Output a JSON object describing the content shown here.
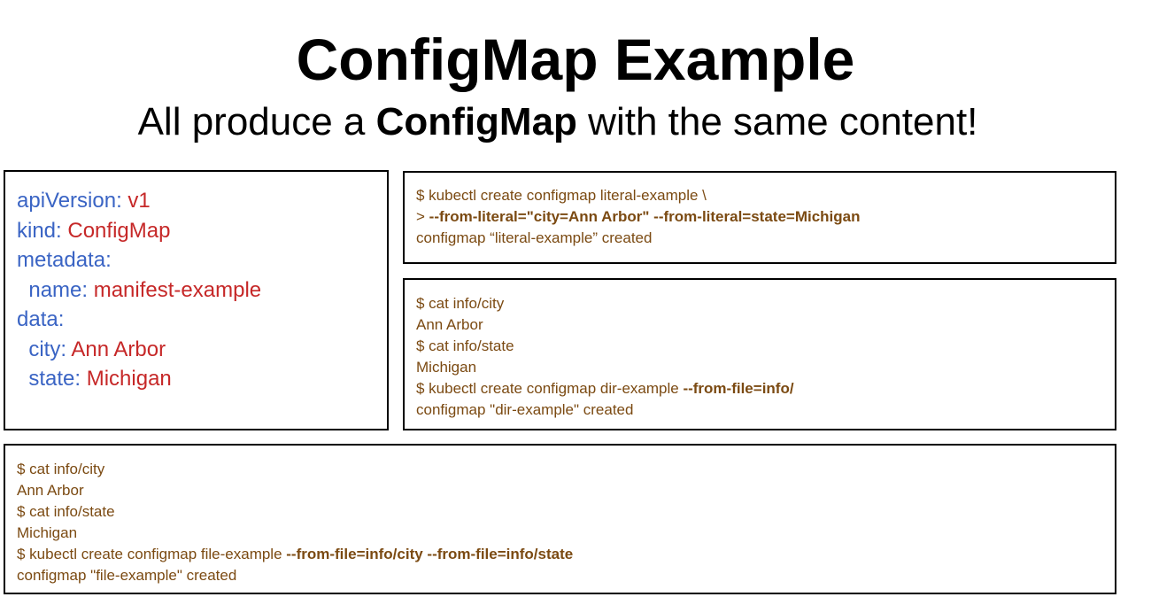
{
  "title": "ConfigMap Example",
  "subtitle": {
    "prefix": "All produce a ",
    "emphasis": "ConfigMap",
    "suffix": " with the same content!"
  },
  "manifest": {
    "apiVersion_key": "apiVersion:",
    "apiVersion_val": "v1",
    "kind_key": "kind:",
    "kind_val": "ConfigMap",
    "metadata_key": "metadata:",
    "name_key": "name:",
    "name_val": "manifest-example",
    "data_key": "data:",
    "city_key": "city:",
    "city_val": "Ann Arbor",
    "state_key": "state:",
    "state_val": "Michigan"
  },
  "literal": {
    "line1": "$ kubectl create configmap literal-example \\",
    "line2_prompt": "> ",
    "line2_flags": "--from-literal=\"city=Ann Arbor\" --from-literal=state=Michigan",
    "line3": "configmap “literal-example” created"
  },
  "dir": {
    "line1": "$ cat info/city",
    "line2": "Ann Arbor",
    "line3": "$ cat info/state",
    "line4": "Michigan",
    "line5_cmd": "$ kubectl create configmap dir-example ",
    "line5_flag": "--from-file=info/",
    "line6": "configmap \"dir-example\" created"
  },
  "file": {
    "line1": "$ cat info/city",
    "line2": "Ann Arbor",
    "line3": "$ cat info/state",
    "line4": "Michigan",
    "line5_cmd": "$ kubectl create configmap file-example ",
    "line5_flag": "--from-file=info/city --from-file=info/state",
    "line6": "configmap \"file-example\" created"
  },
  "colors": {
    "yaml_key": "#3a64c4",
    "yaml_value": "#c62828",
    "terminal_text": "#7b4a12"
  }
}
